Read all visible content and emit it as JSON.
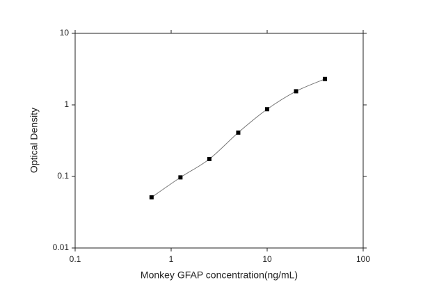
{
  "chart_data": {
    "type": "scatter",
    "x_label": "Monkey GFAP concentration(ng/mL)",
    "y_label": "Optical Density",
    "x": [
      0.625,
      1.25,
      2.5,
      5,
      10,
      20,
      40
    ],
    "series": [
      {
        "values": [
          0.051,
          0.097,
          0.175,
          0.41,
          0.87,
          1.55,
          2.3
        ],
        "color": "#000000"
      }
    ],
    "xlim": [
      0.1,
      100
    ],
    "ylim": [
      0.01,
      10
    ],
    "xticks": [
      0.1,
      1,
      10,
      100
    ],
    "yticks": [
      0.01,
      0.1,
      1,
      10
    ],
    "xscale": "log",
    "yscale": "log",
    "fit_curve": true
  }
}
